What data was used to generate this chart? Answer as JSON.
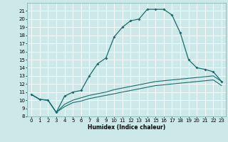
{
  "xlabel": "Humidex (Indice chaleur)",
  "bg_color": "#cde8e8",
  "line_color": "#1a6b6b",
  "grid_color": "#b0d8d8",
  "xlim": [
    -0.5,
    23.5
  ],
  "ylim": [
    8,
    22
  ],
  "yticks": [
    8,
    9,
    10,
    11,
    12,
    13,
    14,
    15,
    16,
    17,
    18,
    19,
    20,
    21
  ],
  "xticks": [
    0,
    1,
    2,
    3,
    4,
    5,
    6,
    7,
    8,
    9,
    10,
    11,
    12,
    13,
    14,
    15,
    16,
    17,
    18,
    19,
    20,
    21,
    22,
    23
  ],
  "upper_x": [
    0,
    1,
    2,
    3,
    4,
    5,
    6,
    7,
    8,
    9,
    10,
    11,
    12,
    13,
    14,
    15,
    16,
    17,
    18,
    19,
    20,
    21,
    22,
    23
  ],
  "upper_y": [
    10.7,
    10.1,
    10.0,
    8.5,
    10.5,
    11.0,
    11.2,
    13.0,
    14.5,
    15.2,
    17.8,
    19.0,
    19.8,
    20.0,
    21.2,
    21.2,
    21.2,
    20.5,
    18.3,
    15.0,
    14.0,
    13.8,
    13.5,
    12.3
  ],
  "upper_has_markers": true,
  "mid_x": [
    0,
    1,
    2,
    3,
    4,
    5,
    6,
    7,
    8,
    9,
    10,
    11,
    12,
    13,
    14,
    15,
    16,
    17,
    18,
    19,
    20,
    21,
    22,
    23
  ],
  "mid_y": [
    10.7,
    10.1,
    10.0,
    8.5,
    9.5,
    10.0,
    10.3,
    10.6,
    10.8,
    11.0,
    11.3,
    11.5,
    11.7,
    11.9,
    12.1,
    12.3,
    12.4,
    12.5,
    12.6,
    12.7,
    12.8,
    12.9,
    13.0,
    12.3
  ],
  "bot_x": [
    0,
    1,
    2,
    3,
    4,
    5,
    6,
    7,
    8,
    9,
    10,
    11,
    12,
    13,
    14,
    15,
    16,
    17,
    18,
    19,
    20,
    21,
    22,
    23
  ],
  "bot_y": [
    10.7,
    10.1,
    10.0,
    8.5,
    9.2,
    9.7,
    9.9,
    10.2,
    10.4,
    10.6,
    10.8,
    11.0,
    11.2,
    11.4,
    11.6,
    11.8,
    11.9,
    12.0,
    12.1,
    12.2,
    12.3,
    12.4,
    12.5,
    11.8
  ]
}
